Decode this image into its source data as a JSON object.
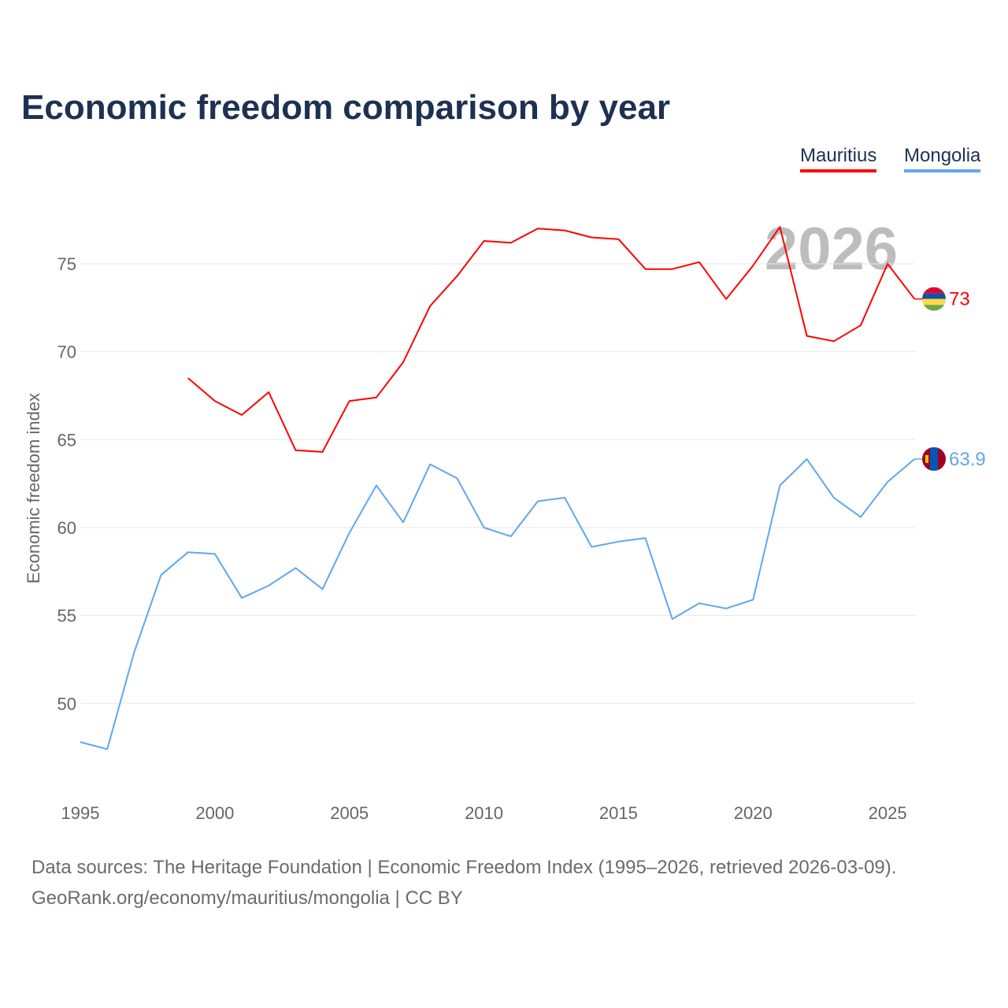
{
  "chart_data": {
    "type": "line",
    "title": "Economic freedom comparison by year",
    "xlabel": "",
    "ylabel": "Economic freedom index",
    "xlim": [
      1995,
      2026
    ],
    "ylim": [
      46,
      79
    ],
    "x_ticks": [
      1995,
      2000,
      2005,
      2010,
      2015,
      2020,
      2025
    ],
    "y_ticks": [
      50,
      55,
      60,
      65,
      70,
      75
    ],
    "grid": true,
    "legend_placement": "top-right",
    "year_watermark": "2026",
    "series": [
      {
        "name": "Mauritius",
        "color": "#ff0000",
        "end_label": "73",
        "x": [
          1999,
          2000,
          2001,
          2002,
          2003,
          2004,
          2005,
          2006,
          2007,
          2008,
          2009,
          2010,
          2011,
          2012,
          2013,
          2014,
          2015,
          2016,
          2017,
          2018,
          2019,
          2020,
          2021,
          2022,
          2023,
          2024,
          2025,
          2026
        ],
        "values": [
          68.5,
          67.2,
          66.4,
          67.7,
          64.4,
          64.3,
          67.2,
          67.4,
          69.4,
          72.6,
          74.3,
          76.3,
          76.2,
          77.0,
          76.9,
          76.5,
          76.4,
          74.7,
          74.7,
          75.1,
          73.0,
          74.9,
          77.1,
          70.9,
          70.6,
          71.5,
          75.0,
          73.0
        ]
      },
      {
        "name": "Mongolia",
        "color": "#5fa8ec",
        "end_label": "63.9",
        "x": [
          1995,
          1996,
          1997,
          1998,
          1999,
          2000,
          2001,
          2002,
          2003,
          2004,
          2005,
          2006,
          2007,
          2008,
          2009,
          2010,
          2011,
          2012,
          2013,
          2014,
          2015,
          2016,
          2017,
          2018,
          2019,
          2020,
          2021,
          2022,
          2023,
          2024,
          2025,
          2026
        ],
        "values": [
          47.8,
          47.4,
          52.9,
          57.3,
          58.6,
          58.5,
          56.0,
          56.7,
          57.7,
          56.5,
          59.7,
          62.4,
          60.3,
          63.6,
          62.8,
          60.0,
          59.5,
          61.5,
          61.7,
          58.9,
          59.2,
          59.4,
          54.8,
          55.7,
          55.4,
          55.9,
          62.4,
          63.9,
          61.7,
          60.6,
          62.6,
          63.9
        ]
      }
    ]
  },
  "footer": {
    "line1": "Data sources: The Heritage Foundation | Economic Freedom Index (1995–2026, retrieved 2026-03-09).",
    "line2": "GeoRank.org/economy/mauritius/mongolia | CC BY"
  }
}
